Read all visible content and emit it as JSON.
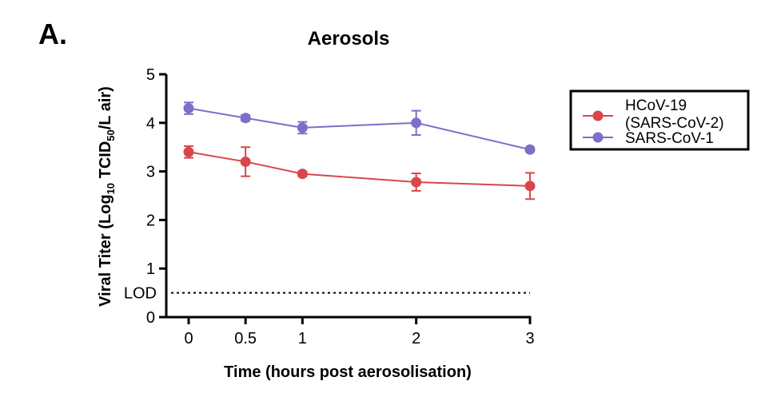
{
  "panel_label": "A.",
  "chart_data": {
    "type": "line",
    "title": "Aerosols",
    "xlabel": "Time (hours post aerosolisation)",
    "ylabel": {
      "prefix": "Viral Titer (Log",
      "sub1": "10",
      "middle": " TCID",
      "sub2": "50",
      "suffix": "/L air)"
    },
    "x_ticks": [
      "0",
      "0.5",
      "1",
      "2",
      "3"
    ],
    "y_ticks": [
      "0",
      "1",
      "2",
      "3",
      "4",
      "5"
    ],
    "xlim": [
      0,
      3
    ],
    "ylim": [
      0,
      5
    ],
    "lod": {
      "label": "LOD",
      "value": 0.5
    },
    "legend_position": "right",
    "series": [
      {
        "name_lines": [
          "HCoV-19",
          "(SARS-CoV-2)"
        ],
        "color": "#d9464a",
        "x": [
          0,
          0.5,
          1,
          2,
          3
        ],
        "y": [
          3.4,
          3.2,
          2.95,
          2.78,
          2.7
        ],
        "err": [
          0.12,
          0.3,
          0.05,
          0.18,
          0.27
        ]
      },
      {
        "name_lines": [
          "SARS-CoV-1"
        ],
        "color": "#7b6fc9",
        "x": [
          0,
          0.5,
          1,
          2,
          3
        ],
        "y": [
          4.3,
          4.1,
          3.9,
          4.0,
          3.45
        ],
        "err": [
          0.12,
          0.06,
          0.12,
          0.25,
          0.04
        ]
      }
    ]
  }
}
